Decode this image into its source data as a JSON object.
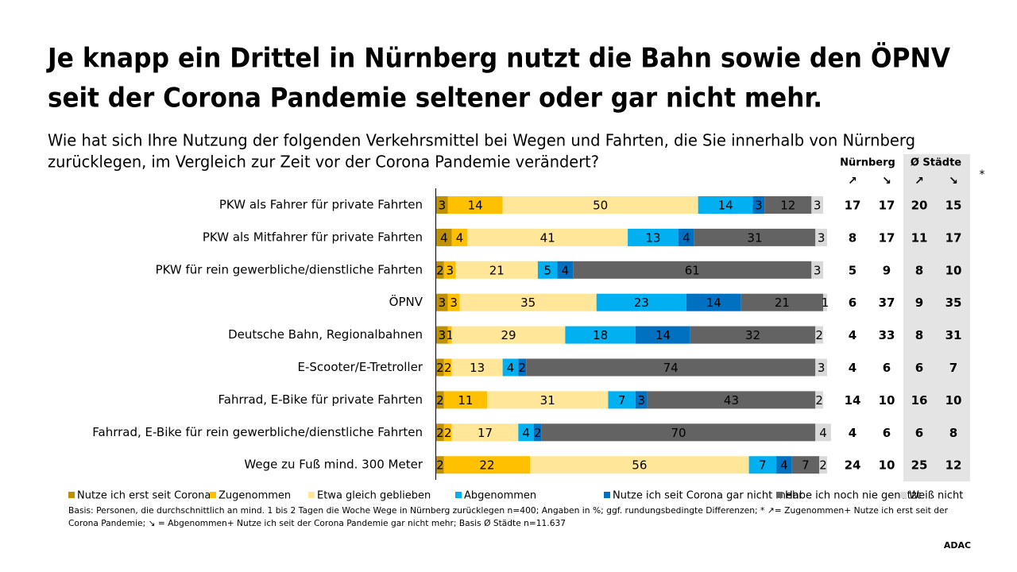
{
  "chart_data": {
    "type": "stacked_barh",
    "title": [
      "Je knapp ein Drittel in Nürnberg nutzt die Bahn sowie den ÖPNV",
      "seit der Corona Pandemie seltener oder gar nicht mehr."
    ],
    "subtitle": [
      "Wie hat sich Ihre Nutzung der folgenden Verkehrsmittel bei Wegen und Fahrten, die Sie innerhalb von Nürnberg",
      "zurücklegen, im Vergleich zur Zeit vor der Corona Pandemie verändert?"
    ],
    "categories": [
      "PKW als Fahrer für private Fahrten",
      "PKW als Mitfahrer für private Fahrten",
      "PKW für rein gewerbliche/dienstliche Fahrten",
      "ÖPNV",
      "Deutsche Bahn, Regionalbahnen",
      "E-Scooter/E-Tretroller",
      "Fahrrad, E-Bike für private Fahrten",
      "Fahrrad, E-Bike für rein gewerbliche/dienstliche Fahrten",
      "Wege zu Fuß mind. 300 Meter"
    ],
    "xlim": [
      0,
      100
    ],
    "series": [
      {
        "name": "Nutze ich erst seit Corona",
        "color": "#bf9000",
        "values": [
          3,
          4,
          2,
          3,
          3,
          2,
          2,
          2,
          2
        ]
      },
      {
        "name": "Zugenommen",
        "color": "#ffc000",
        "values": [
          14,
          4,
          3,
          3,
          1,
          2,
          11,
          2,
          22
        ]
      },
      {
        "name": "Etwa gleich geblieben",
        "color": "#ffe699",
        "values": [
          50,
          41,
          21,
          35,
          29,
          13,
          31,
          17,
          56
        ]
      },
      {
        "name": "Abgenommen",
        "color": "#00b0f0",
        "values": [
          14,
          13,
          5,
          23,
          18,
          4,
          7,
          4,
          7
        ]
      },
      {
        "name": "Nutze ich seit Corona gar nicht mehr",
        "color": "#0070c0",
        "values": [
          3,
          4,
          4,
          14,
          14,
          2,
          3,
          2,
          4
        ]
      },
      {
        "name": "Habe ich noch nie genutzt",
        "color": "#636363",
        "values": [
          12,
          31,
          61,
          21,
          32,
          74,
          43,
          70,
          7
        ]
      },
      {
        "name": "Weiß nicht",
        "color": "#d9d9d9",
        "values": [
          3,
          3,
          3,
          1,
          2,
          3,
          2,
          4,
          2
        ]
      }
    ],
    "side_table": {
      "groups": [
        "Nürnberg",
        "Ø Städte"
      ],
      "columns": [
        "↗",
        "↘",
        "↗",
        "↘"
      ],
      "note": "*",
      "rows": [
        [
          17,
          17,
          20,
          15
        ],
        [
          8,
          17,
          11,
          17
        ],
        [
          5,
          9,
          8,
          10
        ],
        [
          6,
          37,
          9,
          35
        ],
        [
          4,
          33,
          8,
          31
        ],
        [
          4,
          6,
          6,
          7
        ],
        [
          14,
          10,
          16,
          10
        ],
        [
          4,
          6,
          6,
          8
        ],
        [
          24,
          10,
          25,
          12
        ]
      ]
    },
    "footnote": [
      "Basis: Personen, die durchschnittlich an mind. 1 bis 2 Tagen die Woche Wege in Nürnberg zurücklegen n=400; Angaben in %; ggf. rundungsbedingte Differenzen; * ↗= Zugenommen+ Nutze ich erst seit der",
      "Corona Pandemie; ↘ = Abgenommen+ Nutze ich seit der Corona Pandemie gar nicht mehr; Basis Ø Städte n=11.637"
    ],
    "brand": "ADAC"
  }
}
